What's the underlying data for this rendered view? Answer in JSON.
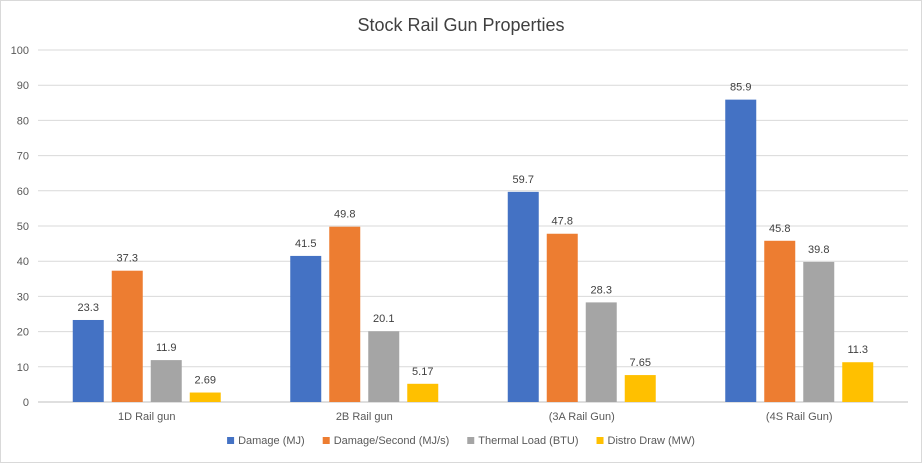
{
  "chart_data": {
    "type": "bar",
    "title": "Stock Rail Gun Properties",
    "xlabel": "",
    "ylabel": "",
    "ylim": [
      0,
      100
    ],
    "yticks": [
      0,
      10,
      20,
      30,
      40,
      50,
      60,
      70,
      80,
      90,
      100
    ],
    "grid": true,
    "legend_position": "bottom",
    "categories": [
      "1D Rail gun",
      "2B Rail gun",
      "(3A Rail Gun)",
      "(4S Rail Gun)"
    ],
    "series": [
      {
        "name": "Damage (MJ)",
        "color": "#4472C4",
        "values": [
          23.3,
          41.5,
          59.7,
          85.9
        ],
        "labels": [
          "23.3",
          "41.5",
          "59.7",
          "85.9"
        ]
      },
      {
        "name": "Damage/Second (MJ/s)",
        "color": "#ED7D31",
        "values": [
          37.3,
          49.8,
          47.8,
          45.8
        ],
        "labels": [
          "37.3",
          "49.8",
          "47.8",
          "45.8"
        ]
      },
      {
        "name": "Thermal Load (BTU)",
        "color": "#A5A5A5",
        "values": [
          11.9,
          20.1,
          28.3,
          39.8
        ],
        "labels": [
          "11.9",
          "20.1",
          "28.3",
          "39.8"
        ]
      },
      {
        "name": "Distro Draw (MW)",
        "color": "#FFC000",
        "values": [
          2.69,
          5.17,
          7.65,
          11.3
        ],
        "labels": [
          "2.69",
          "5.17",
          "7.65",
          "11.3"
        ]
      }
    ]
  }
}
